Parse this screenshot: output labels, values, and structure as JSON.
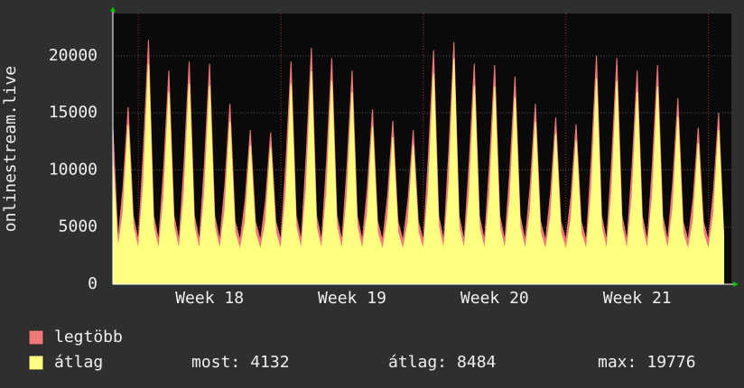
{
  "chart_data": {
    "type": "area",
    "y_label": "onlinestream.live",
    "x": [
      0,
      6,
      12,
      18,
      24,
      30,
      36,
      42,
      48,
      54,
      60,
      66,
      72,
      78,
      84,
      90,
      96,
      102,
      108,
      114,
      120,
      126,
      132,
      138,
      144,
      150,
      156,
      162,
      168,
      174,
      180,
      186,
      192,
      198,
      204,
      210,
      216,
      222,
      228,
      234,
      240,
      246,
      252,
      258,
      264,
      270,
      276,
      282,
      288,
      294,
      300,
      306,
      312,
      318,
      324,
      330,
      336,
      342,
      348,
      354,
      360,
      366,
      372,
      378,
      384,
      390,
      396,
      402,
      408,
      414,
      420,
      426,
      432,
      438,
      444,
      450,
      456,
      462,
      468,
      474,
      480,
      486,
      492,
      498,
      504,
      510,
      516,
      522,
      528,
      534,
      540,
      546,
      552,
      558,
      564,
      570,
      576,
      582,
      588,
      594,
      600,
      606,
      612,
      618,
      624,
      630,
      636,
      642,
      648,
      654,
      660,
      666,
      672,
      678,
      684,
      690,
      696,
      702,
      708,
      714,
      720
    ],
    "series": [
      {
        "name": "legtöbb",
        "color": "#f07878",
        "values": [
          13800,
          3800,
          8500,
          15500,
          6000,
          3800,
          11770,
          21400,
          6000,
          3800,
          10290,
          18700,
          6000,
          3800,
          10730,
          19500,
          6000,
          3800,
          10620,
          19300,
          6000,
          3800,
          8690,
          15800,
          5500,
          3800,
          7430,
          13500,
          5500,
          3800,
          7320,
          13300,
          5500,
          3800,
          10730,
          19500,
          6000,
          3800,
          11390,
          20700,
          6000,
          3800,
          10890,
          19800,
          6000,
          3800,
          10290,
          18700,
          6000,
          3800,
          8420,
          15300,
          5500,
          3800,
          7870,
          14300,
          5500,
          3800,
          7430,
          13500,
          5500,
          3800,
          11280,
          20500,
          6000,
          3800,
          11660,
          21200,
          6000,
          3800,
          10620,
          19300,
          6000,
          3800,
          10560,
          19200,
          6000,
          3800,
          10010,
          18200,
          6000,
          3800,
          8690,
          15800,
          5500,
          3800,
          8030,
          14600,
          5500,
          3800,
          7700,
          14000,
          5500,
          3800,
          11000,
          20000,
          6000,
          3800,
          10890,
          19800,
          6000,
          3800,
          10290,
          18700,
          6000,
          3800,
          10560,
          19200,
          6000,
          3800,
          8970,
          16300,
          5500,
          3800,
          7540,
          13700,
          5500,
          3800,
          8250,
          15000,
          4300
        ]
      },
      {
        "name": "átlag",
        "color": "#ffff80",
        "values": [
          11000,
          3000,
          6280,
          13950,
          5000,
          3000,
          8670,
          19260,
          5000,
          3000,
          7570,
          16830,
          5000,
          3000,
          7900,
          17550,
          5000,
          3000,
          7820,
          17370,
          5000,
          3000,
          6400,
          14220,
          4500,
          3000,
          5470,
          12150,
          4500,
          3000,
          5390,
          11970,
          4500,
          3000,
          7900,
          17550,
          5000,
          3000,
          8380,
          18630,
          5000,
          3000,
          8020,
          17820,
          5000,
          3000,
          7570,
          16830,
          5000,
          3000,
          6200,
          13770,
          4500,
          3000,
          5790,
          12870,
          4500,
          3000,
          5470,
          12150,
          4500,
          3000,
          8300,
          18450,
          5000,
          3000,
          8590,
          19776,
          5000,
          3000,
          7820,
          17370,
          5000,
          3000,
          7780,
          17280,
          5000,
          3000,
          7370,
          16380,
          5000,
          3000,
          6400,
          14220,
          4500,
          3000,
          5910,
          13140,
          4500,
          3000,
          5670,
          12600,
          4500,
          3000,
          8100,
          18000,
          5000,
          3000,
          8020,
          17820,
          5000,
          3000,
          7570,
          16830,
          5000,
          3000,
          7780,
          17280,
          5000,
          3000,
          6600,
          14670,
          4500,
          3000,
          5550,
          12330,
          4500,
          3000,
          6080,
          13500,
          4132
        ]
      }
    ],
    "xlim": [
      0,
      729
    ],
    "xticks": [
      {
        "value": 114,
        "label": "Week 18"
      },
      {
        "value": 282,
        "label": "Week 19"
      },
      {
        "value": 450,
        "label": "Week 20"
      },
      {
        "value": 618,
        "label": "Week 21"
      }
    ],
    "week_lines": [
      30,
      198,
      366,
      534,
      702
    ],
    "ylim": [
      0,
      23700
    ],
    "yticks": [
      0,
      5000,
      10000,
      15000,
      20000
    ],
    "grid": true,
    "stats": [
      {
        "label": "most:",
        "value": "4132"
      },
      {
        "label": "átlag:",
        "value": "8484"
      },
      {
        "label": "max:",
        "value": "19776"
      }
    ]
  }
}
